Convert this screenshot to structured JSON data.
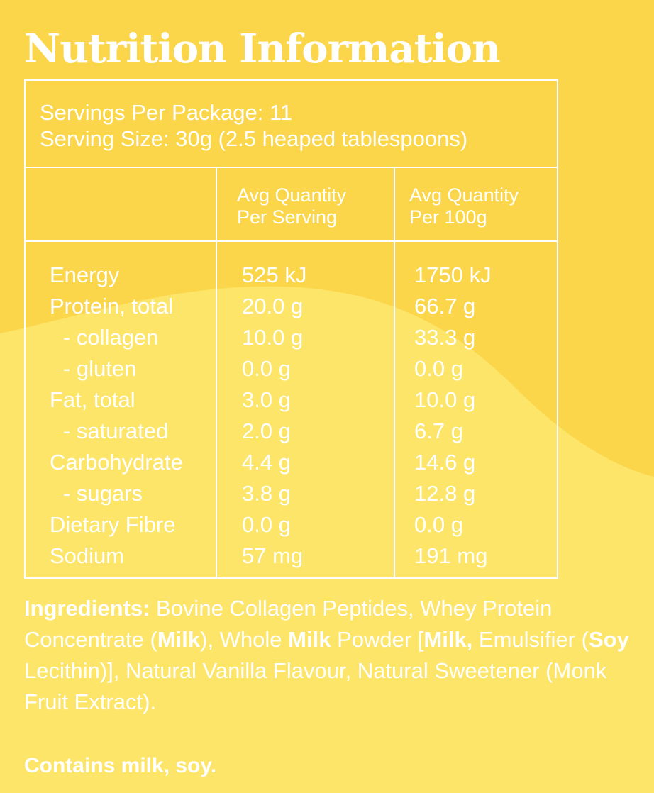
{
  "colors": {
    "background_top": "#fcd64a",
    "background_wave": "#fde56a",
    "text": "#ffffff"
  },
  "title": "Nutrition Information",
  "servings_per_package": "Servings Per Package: 11",
  "serving_size": "Serving Size: 30g (2.5 heaped tablespoons)",
  "columns": {
    "per_serving_line1": "Avg Quantity",
    "per_serving_line2": "Per Serving",
    "per_100g_line1": "Avg Quantity",
    "per_100g_line2": "Per 100g"
  },
  "rows": [
    {
      "name": "Energy",
      "per_serving": "525 kJ",
      "per_100g": "1750 kJ"
    },
    {
      "name": "Protein, total",
      "per_serving": "20.0 g",
      "per_100g": "66.7 g"
    },
    {
      "name": "- collagen",
      "per_serving": "10.0 g",
      "per_100g": "33.3 g"
    },
    {
      "name": "- gluten",
      "per_serving": "0.0 g",
      "per_100g": "0.0 g"
    },
    {
      "name": "Fat, total",
      "per_serving": "3.0 g",
      "per_100g": "10.0 g"
    },
    {
      "name": "- saturated",
      "per_serving": "2.0 g",
      "per_100g": "6.7 g"
    },
    {
      "name": "Carbohydrate",
      "per_serving": "4.4 g",
      "per_100g": "14.6 g"
    },
    {
      "name": "- sugars",
      "per_serving": "3.8 g",
      "per_100g": "12.8 g"
    },
    {
      "name": "Dietary Fibre",
      "per_serving": "0.0 g",
      "per_100g": "0.0 g"
    },
    {
      "name": "Sodium",
      "per_serving": "57 mg",
      "per_100g": "191 mg"
    }
  ],
  "ingredients": {
    "label": "Ingredients:",
    "p1": " Bovine Collagen Peptides, Whey Protein Concentrate (",
    "b1": "Milk",
    "p2": "), Whole ",
    "b2": "Milk",
    "p3": " Powder [",
    "b3": "Milk,",
    "p4": " Emulsifier (",
    "b4": "Soy",
    "p5": " Lecithin)], Natural Vanilla Flavour, Natural Sweetener (Monk Fruit Extract)."
  },
  "contains": "Contains milk, soy."
}
